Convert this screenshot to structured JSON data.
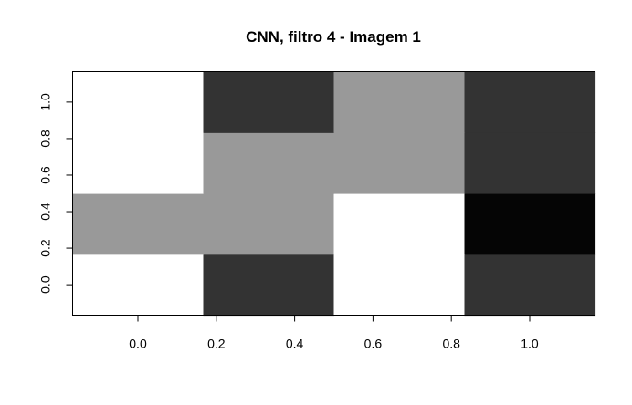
{
  "chart_data": {
    "type": "heatmap",
    "title": "CNN, filtro 4 - Imagem 1",
    "xlabel": "",
    "ylabel": "",
    "x_ticks": [
      "0.0",
      "0.2",
      "0.4",
      "0.6",
      "0.8",
      "1.0"
    ],
    "y_ticks": [
      "0.0",
      "0.2",
      "0.4",
      "0.6",
      "0.8",
      "1.0"
    ],
    "x_tick_values": [
      0.0,
      0.2,
      0.4,
      0.6,
      0.8,
      1.0
    ],
    "y_tick_values": [
      0.0,
      0.2,
      0.4,
      0.6,
      0.8,
      1.0
    ],
    "xlim": [
      -0.1667,
      1.1667
    ],
    "ylim": [
      -0.1667,
      1.1667
    ],
    "columns": 4,
    "rows": 4,
    "row_order": "bottom-to-top",
    "grid": false,
    "colormap": "grayscale",
    "cells": [
      [
        "#ffffff",
        "#333333",
        "#ffffff",
        "#333333"
      ],
      [
        "#999999",
        "#999999",
        "#ffffff",
        "#050505"
      ],
      [
        "#ffffff",
        "#999999",
        "#999999",
        "#333333"
      ],
      [
        "#ffffff",
        "#333333",
        "#999999",
        "#333333"
      ]
    ]
  }
}
